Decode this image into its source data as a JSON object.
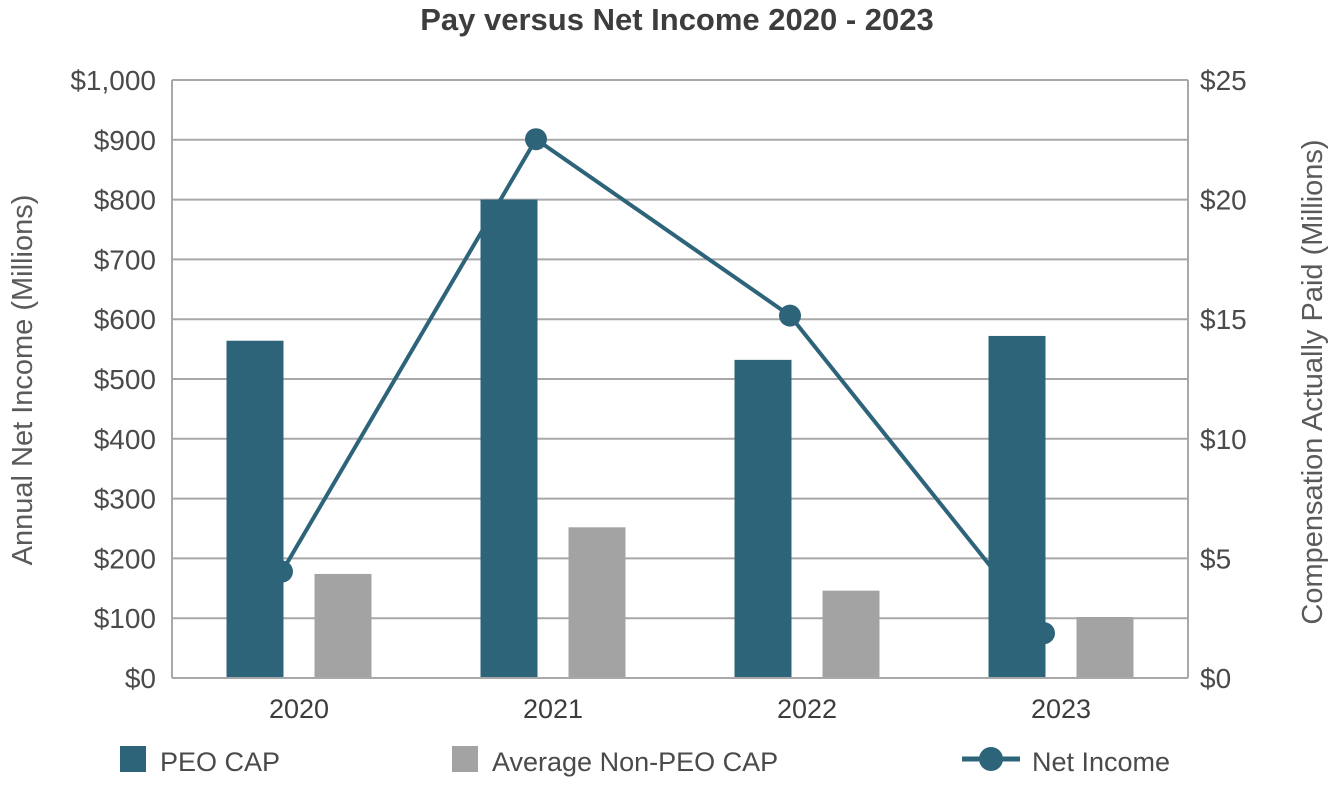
{
  "chart_data": {
    "type": "bar",
    "title": "Pay versus Net Income 2020 - 2023",
    "categories": [
      "2020",
      "2021",
      "2022",
      "2023"
    ],
    "y_left": {
      "label": "Annual Net Income (Millions)",
      "range": [
        0,
        1000
      ],
      "ticks": [
        "$0",
        "$100",
        "$200",
        "$300",
        "$400",
        "$500",
        "$600",
        "$700",
        "$800",
        "$900",
        "$1,000"
      ]
    },
    "y_right": {
      "label": "Compensation Actually Paid (Millions)",
      "range": [
        0,
        25
      ],
      "ticks": [
        "$0",
        "$5",
        "$10",
        "$15",
        "$20",
        "$25"
      ]
    },
    "series": [
      {
        "name": "PEO CAP",
        "type": "bar",
        "axis": "right",
        "color": "#2e6479",
        "values": [
          14.1,
          20.0,
          13.3,
          14.3
        ]
      },
      {
        "name": "Average Non-PEO CAP",
        "type": "bar",
        "axis": "right",
        "color": "#a3a3a3",
        "values": [
          4.35,
          6.3,
          3.65,
          2.55
        ]
      },
      {
        "name": "Net Income",
        "type": "line",
        "axis": "left",
        "color": "#2e6479",
        "values": [
          178,
          901,
          606,
          75
        ]
      }
    ],
    "grid": true,
    "legend_position": "bottom"
  }
}
